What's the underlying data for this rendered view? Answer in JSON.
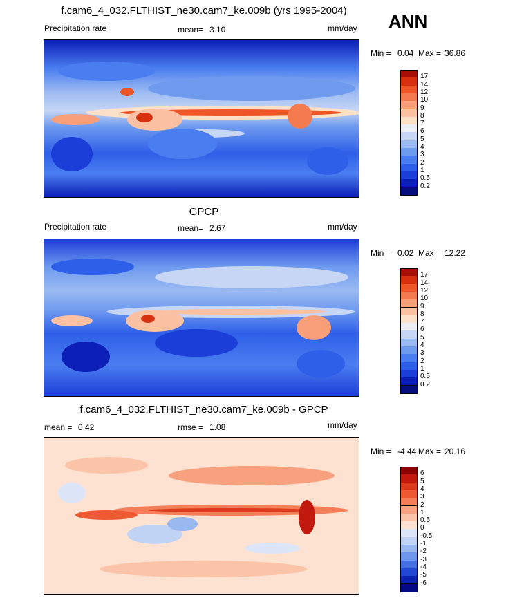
{
  "season": "ANN",
  "panels": [
    {
      "id": "model",
      "title": "f.cam6_4_032.FLTHIST_ne30.cam7_ke.009b (yrs 1995-2004)",
      "left_label": "Precipitation rate",
      "center_label": "mean=",
      "center_value": "3.10",
      "units": "mm/day",
      "minmax_label": "Min =",
      "min_value": "0.04",
      "max_label": "Max =",
      "max_value": "36.86",
      "colorbar_levels": [
        "17",
        "14",
        "12",
        "10",
        "9",
        "8",
        "7",
        "6",
        "5",
        "4",
        "3",
        "2",
        "1",
        "0.5",
        "0.2"
      ],
      "colorbar_colors": [
        "#a50f05",
        "#d7300f",
        "#ee5527",
        "#f47a4f",
        "#f89e78",
        "#fbc1a2",
        "#fde0c8",
        "#eeeef5",
        "#c6d6f4",
        "#9bbaf2",
        "#6f9bef",
        "#4a7ef0",
        "#2e5fe8",
        "#1c3ed8",
        "#0b1eb5",
        "#060e7e"
      ]
    },
    {
      "id": "obs",
      "title": "GPCP",
      "left_label": "Precipitation rate",
      "center_label": "mean=",
      "center_value": "2.67",
      "units": "mm/day",
      "minmax_label": "Min =",
      "min_value": "0.02",
      "max_label": "Max =",
      "max_value": "12.22",
      "colorbar_levels": [
        "17",
        "14",
        "12",
        "10",
        "9",
        "8",
        "7",
        "6",
        "5",
        "4",
        "3",
        "2",
        "1",
        "0.5",
        "0.2"
      ],
      "colorbar_colors": [
        "#a50f05",
        "#d7300f",
        "#ee5527",
        "#f47a4f",
        "#f89e78",
        "#fbc1a2",
        "#fde0c8",
        "#eeeef5",
        "#c6d6f4",
        "#9bbaf2",
        "#6f9bef",
        "#4a7ef0",
        "#2e5fe8",
        "#1c3ed8",
        "#0b1eb5",
        "#060e7e"
      ]
    },
    {
      "id": "diff",
      "title": "f.cam6_4_032.FLTHIST_ne30.cam7_ke.009b - GPCP",
      "left_label": "mean =",
      "left_value": "0.42",
      "center_label": "rmse =",
      "center_value": "1.08",
      "units": "mm/day",
      "minmax_label": "Min =",
      "min_value": "-4.44",
      "max_label": "Max =",
      "max_value": "20.16",
      "colorbar_levels": [
        "6",
        "5",
        "4",
        "3",
        "2",
        "1",
        "0.5",
        "0",
        "-0.5",
        "-1",
        "-2",
        "-3",
        "-4",
        "-5",
        "-6"
      ],
      "colorbar_colors": [
        "#8b0000",
        "#c21a0e",
        "#dc3a1c",
        "#ef5a33",
        "#f47e58",
        "#f8a17f",
        "#fbc3a8",
        "#fde2d2",
        "#dde6f8",
        "#c0d3f5",
        "#9ab8f0",
        "#6e96ea",
        "#4470e2",
        "#2248d3",
        "#0d24b2",
        "#030a82"
      ]
    }
  ]
}
